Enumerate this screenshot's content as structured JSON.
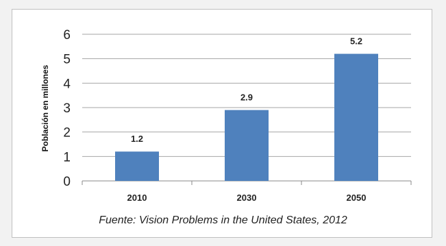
{
  "chart_data": {
    "type": "bar",
    "categories": [
      "2010",
      "2030",
      "2050"
    ],
    "values": [
      1.2,
      2.9,
      5.2
    ],
    "data_labels": [
      "1.2",
      "2.9",
      "5.2"
    ],
    "ylabel": "Población en millones",
    "xlabel": "",
    "ylim": [
      0,
      6
    ],
    "yticks": [
      0,
      1,
      2,
      3,
      4,
      5,
      6
    ],
    "grid": true,
    "bar_color": "#4f81bd"
  },
  "source": "Fuente: Vision Problems in the United States, 2012"
}
